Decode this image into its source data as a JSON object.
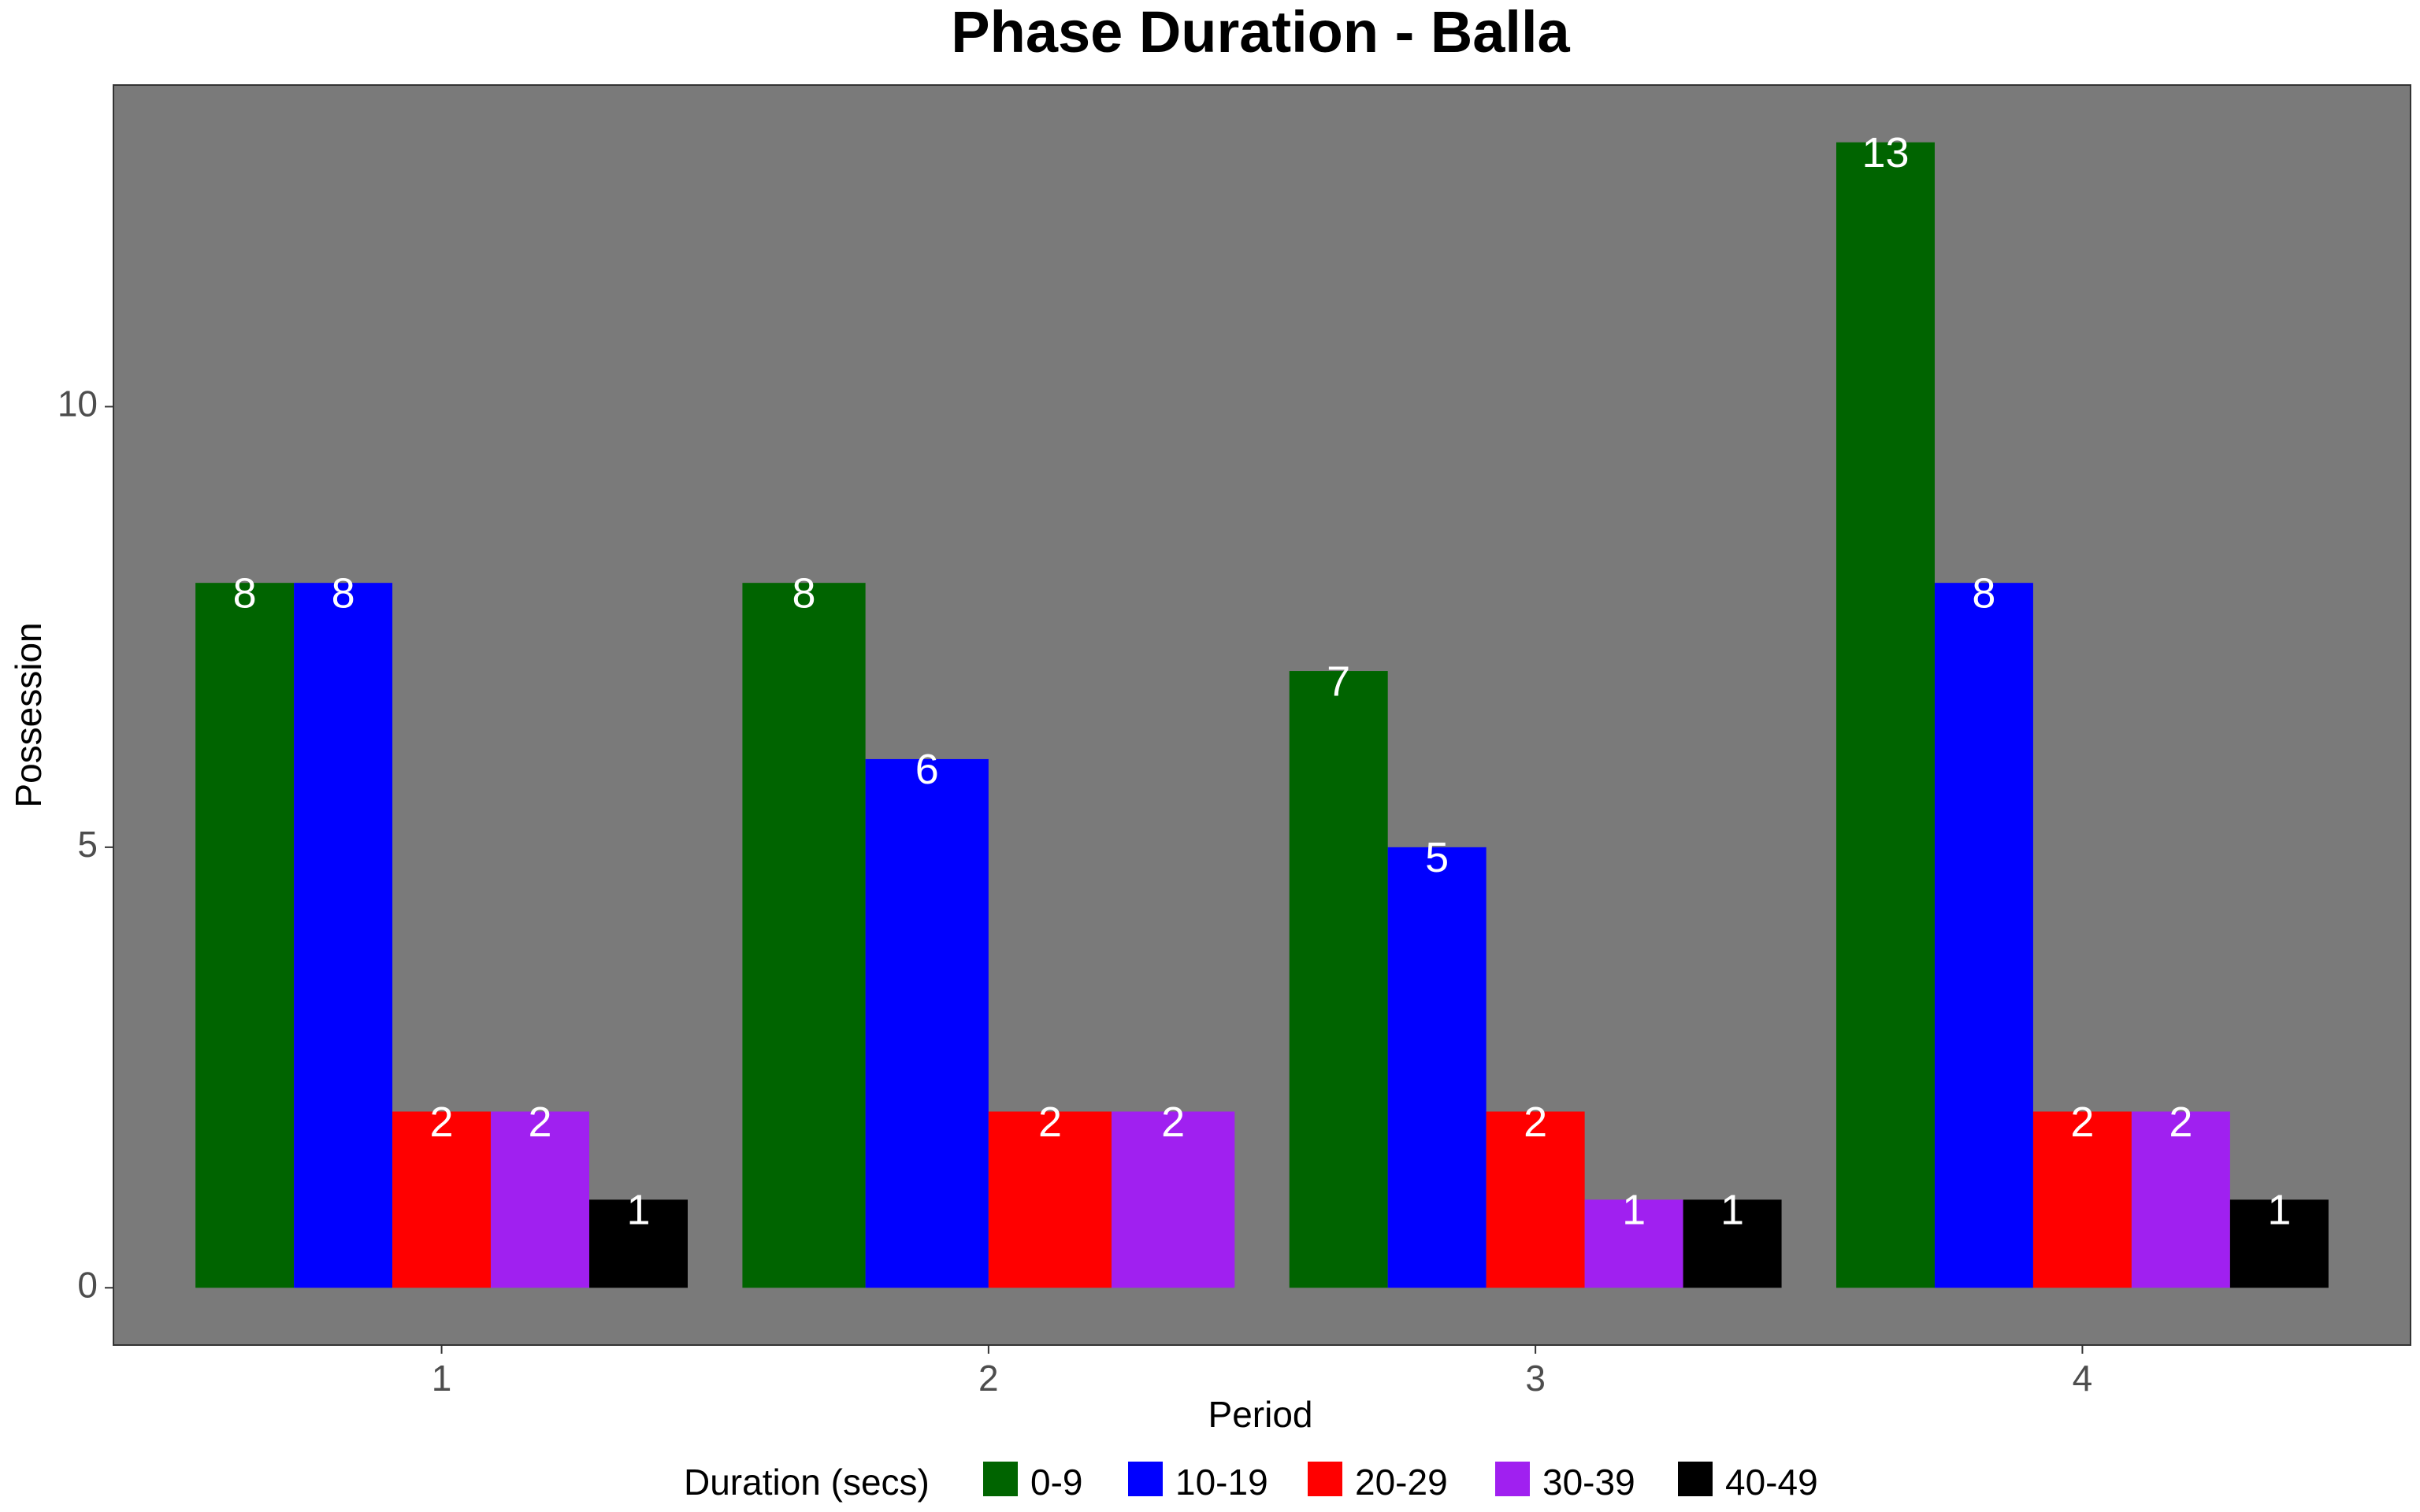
{
  "chart_data": {
    "type": "bar",
    "title": "Phase Duration - Balla",
    "xlabel": "Period",
    "ylabel": "Possession",
    "categories": [
      "1",
      "2",
      "3",
      "4"
    ],
    "yticks": [
      0,
      5,
      10
    ],
    "ylim": [
      -0.65,
      13.65
    ],
    "grid": false,
    "legend": {
      "title": "Duration (secs)",
      "position": "bottom"
    },
    "series": [
      {
        "name": "0-9",
        "color": "#006400",
        "values": [
          8,
          8,
          7,
          13
        ]
      },
      {
        "name": "10-19",
        "color": "#0000ff",
        "values": [
          8,
          6,
          5,
          8
        ]
      },
      {
        "name": "20-29",
        "color": "#ff0000",
        "values": [
          2,
          2,
          2,
          2
        ]
      },
      {
        "name": "30-39",
        "color": "#a020f0",
        "values": [
          2,
          2,
          1,
          2
        ]
      },
      {
        "name": "40-49",
        "color": "#000000",
        "values": [
          1,
          null,
          1,
          1
        ]
      }
    ],
    "colors": {
      "panel_background": "#7a7a7a",
      "label_color": "#ffffff"
    }
  }
}
